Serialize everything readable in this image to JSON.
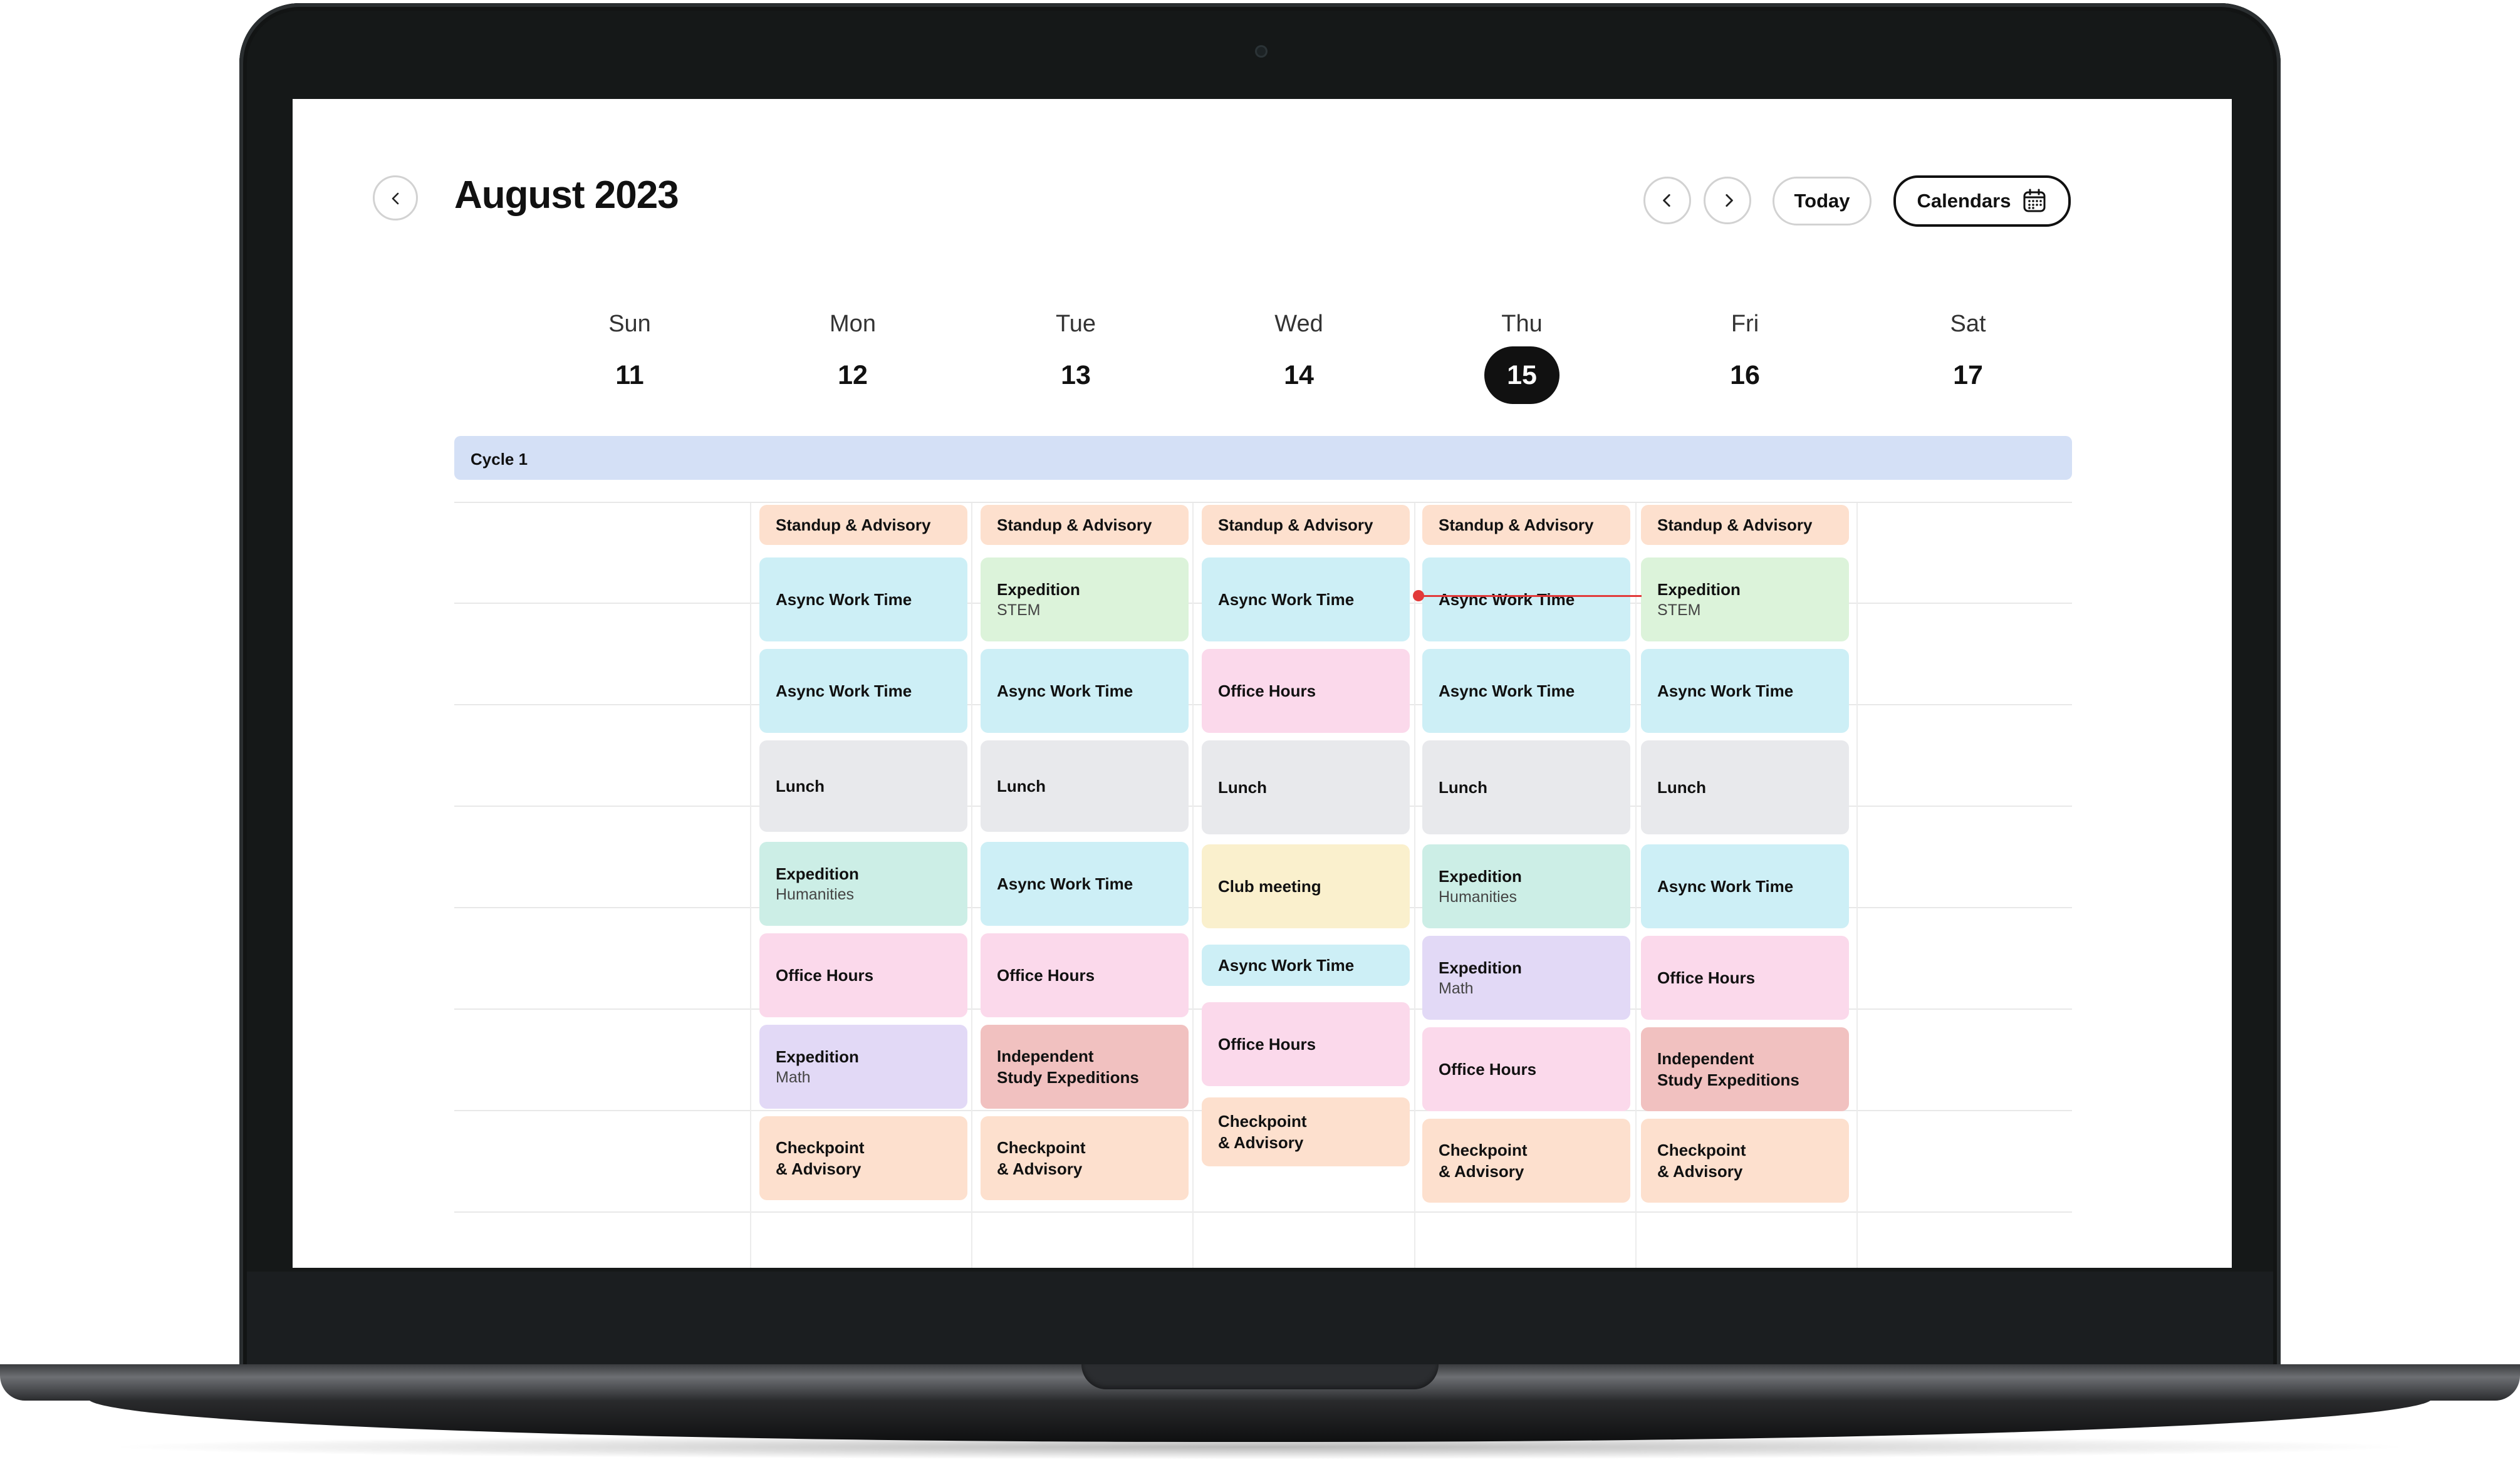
{
  "header": {
    "title": "August 2023",
    "back_icon": "chevron-left-icon",
    "prev_icon": "chevron-left-icon",
    "next_icon": "chevron-right-icon",
    "today_label": "Today",
    "calendars_label": "Calendars",
    "calendars_icon": "calendar-icon"
  },
  "days": [
    {
      "name": "Sun",
      "date": "11"
    },
    {
      "name": "Mon",
      "date": "12"
    },
    {
      "name": "Tue",
      "date": "13"
    },
    {
      "name": "Wed",
      "date": "14"
    },
    {
      "name": "Thu",
      "date": "15",
      "today": true
    },
    {
      "name": "Fri",
      "date": "16"
    },
    {
      "name": "Sat",
      "date": "17"
    }
  ],
  "cycle_label": "Cycle 1",
  "events": {
    "mon": [
      {
        "title": "Standup & Advisory",
        "color": "#fde0ce"
      },
      {
        "title": "Async Work Time",
        "color": "#cdeff6"
      },
      {
        "title": "Async Work Time",
        "color": "#cdeff6"
      },
      {
        "title": "Lunch",
        "color": "#e8e9ec"
      },
      {
        "title": "Expedition",
        "subtitle": "Humanities",
        "color": "#cceee6"
      },
      {
        "title": "Office Hours",
        "color": "#fbd9eb"
      },
      {
        "title": "Expedition",
        "subtitle": "Math",
        "color": "#e2d9f6"
      },
      {
        "title": "Checkpoint",
        "title2": "& Advisory",
        "color": "#fde0ce"
      }
    ],
    "tue": [
      {
        "title": "Standup & Advisory",
        "color": "#fde0ce"
      },
      {
        "title": "Expedition",
        "subtitle": "STEM",
        "color": "#dcf3da"
      },
      {
        "title": "Async Work Time",
        "color": "#cdeff6"
      },
      {
        "title": "Lunch",
        "color": "#e8e9ec"
      },
      {
        "title": "Async Work Time",
        "color": "#cdeff6"
      },
      {
        "title": "Office Hours",
        "color": "#fbd9eb"
      },
      {
        "title": "Independent",
        "title2": "Study Expeditions",
        "color": "#f1c1c0"
      },
      {
        "title": "Checkpoint",
        "title2": "& Advisory",
        "color": "#fde0ce"
      }
    ],
    "wed": [
      {
        "title": "Standup & Advisory",
        "color": "#fde0ce"
      },
      {
        "title": "Async Work Time",
        "color": "#cdeff6"
      },
      {
        "title": "Office Hours",
        "color": "#fbd9eb"
      },
      {
        "title": "Lunch",
        "color": "#e8e9ec"
      },
      {
        "title": "Club meeting",
        "color": "#faf0cd"
      },
      {
        "title": "Async Work Time",
        "color": "#cdeff6"
      },
      {
        "title": "Office Hours",
        "color": "#fbd9eb"
      },
      {
        "title": "Checkpoint",
        "title2": "& Advisory",
        "color": "#fde0ce"
      }
    ],
    "thu": [
      {
        "title": "Standup & Advisory",
        "color": "#fde0ce"
      },
      {
        "title": "Async Work Time",
        "color": "#cdeff6"
      },
      {
        "title": "Async Work Time",
        "color": "#cdeff6"
      },
      {
        "title": "Lunch",
        "color": "#e8e9ec"
      },
      {
        "title": "Expedition",
        "subtitle": "Humanities",
        "color": "#cceee6"
      },
      {
        "title": "Expedition",
        "subtitle": "Math",
        "color": "#e2d9f6"
      },
      {
        "title": "Office Hours",
        "color": "#fbd9eb"
      },
      {
        "title": "Checkpoint",
        "title2": "& Advisory",
        "color": "#fde0ce"
      }
    ],
    "fri": [
      {
        "title": "Standup & Advisory",
        "color": "#fde0ce"
      },
      {
        "title": "Expedition",
        "subtitle": "STEM",
        "color": "#dcf3da"
      },
      {
        "title": "Async Work Time",
        "color": "#cdeff6"
      },
      {
        "title": "Lunch",
        "color": "#e8e9ec"
      },
      {
        "title": "Async Work Time",
        "color": "#cdeff6"
      },
      {
        "title": "Office Hours",
        "color": "#fbd9eb"
      },
      {
        "title": "Independent",
        "title2": "Study Expeditions",
        "color": "#f1c1c0"
      },
      {
        "title": "Checkpoint",
        "title2": "& Advisory",
        "color": "#fde0ce"
      }
    ]
  },
  "now_indicator_color": "#e23a3a"
}
